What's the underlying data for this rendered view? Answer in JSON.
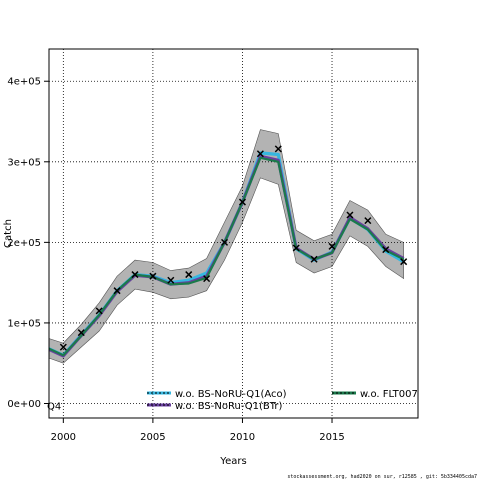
{
  "chart_data": {
    "type": "line",
    "title": "",
    "xlabel": "Years",
    "ylabel": "Catch",
    "panel_label": "Q4",
    "xlim": [
      1999.2,
      2019.8
    ],
    "ylim": [
      -18000,
      440000
    ],
    "x_ticks": [
      2000,
      2005,
      2010,
      2015
    ],
    "x_tick_labels": [
      "2000",
      "2005",
      "2010",
      "2015"
    ],
    "y_ticks": [
      0,
      100000,
      200000,
      300000,
      400000
    ],
    "y_tick_labels": [
      "0e+00",
      "1e+05",
      "2e+05",
      "3e+05",
      "4e+05"
    ],
    "grid": true,
    "legend_position": "bottom",
    "x": [
      1999,
      2000,
      2001,
      2002,
      2003,
      2004,
      2005,
      2006,
      2007,
      2008,
      2009,
      2010,
      2011,
      2012,
      2013,
      2014,
      2015,
      2016,
      2017,
      2018,
      2019
    ],
    "confidence_band": {
      "lower": [
        58000,
        50000,
        70000,
        90000,
        122000,
        142000,
        138000,
        130000,
        132000,
        140000,
        178000,
        225000,
        280000,
        272000,
        175000,
        162000,
        170000,
        208000,
        195000,
        170000,
        155000
      ],
      "upper": [
        82000,
        75000,
        98000,
        125000,
        158000,
        178000,
        175000,
        165000,
        168000,
        180000,
        225000,
        270000,
        340000,
        335000,
        215000,
        202000,
        210000,
        252000,
        240000,
        210000,
        200000
      ]
    },
    "series": [
      {
        "name": "w.o. BS-NoRU-Q1(Aco)",
        "color": "#35b7e0",
        "values": [
          70000,
          60000,
          85000,
          110000,
          140000,
          160000,
          158000,
          150000,
          153000,
          162000,
          200000,
          250000,
          311000,
          309000,
          192000,
          178000,
          188000,
          230000,
          216000,
          189000,
          176000
        ]
      },
      {
        "name": "w.o. BS-NoRu-Q1(BTr)",
        "color": "#6a3fa0",
        "values": [
          69000,
          59000,
          84000,
          109000,
          139000,
          159000,
          157000,
          148000,
          150000,
          158000,
          200000,
          250000,
          307000,
          302000,
          193000,
          179000,
          187000,
          231000,
          217000,
          192000,
          180000
        ]
      },
      {
        "name": "w.o. FLT007",
        "color": "#1b7a4b",
        "values": [
          70000,
          60000,
          84000,
          110000,
          140000,
          160000,
          157000,
          148000,
          149000,
          156000,
          200000,
          250000,
          305000,
          300000,
          192000,
          179000,
          187000,
          229000,
          216000,
          190000,
          179000
        ]
      }
    ],
    "observations": {
      "marker": "x",
      "x": [
        2000,
        2001,
        2002,
        2003,
        2004,
        2005,
        2006,
        2007,
        2008,
        2009,
        2010,
        2011,
        2012,
        2013,
        2014,
        2015,
        2016,
        2017,
        2018,
        2019
      ],
      "y": [
        70000,
        88000,
        115000,
        140000,
        160000,
        158000,
        153000,
        160000,
        155000,
        200000,
        250000,
        310000,
        316000,
        193000,
        179000,
        195000,
        234000,
        227000,
        191000,
        176000
      ]
    },
    "footer": "stockassessment.org, had2020 on sur, r12585 , git: 5b334405cda7"
  }
}
